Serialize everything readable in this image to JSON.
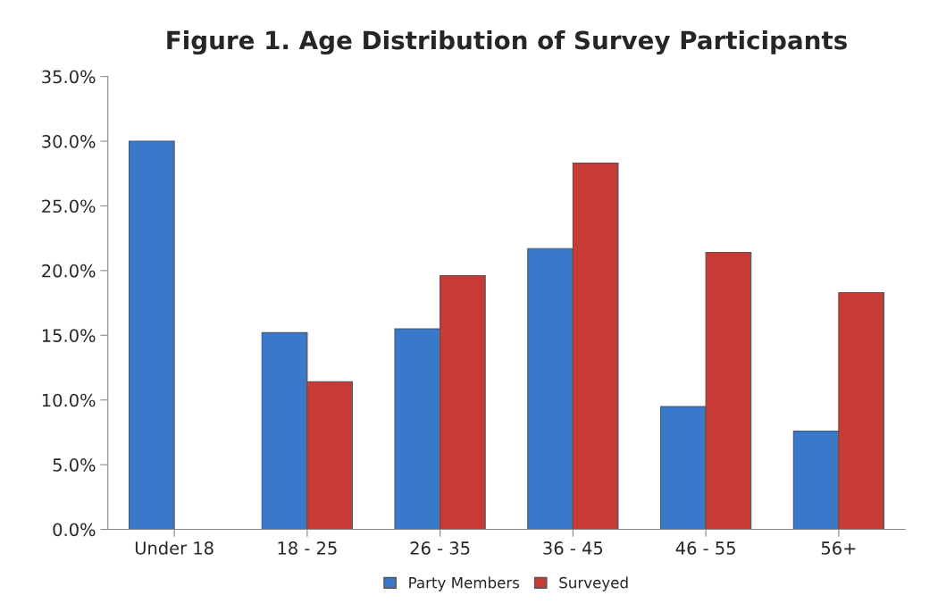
{
  "chart_data": {
    "type": "bar",
    "title": "Figure 1. Age Distribution of Survey Participants",
    "categories": [
      "Under 18",
      "18 - 25",
      "26 - 35",
      "36 - 45",
      "46 - 55",
      "56+"
    ],
    "series": [
      {
        "name": "Party Members",
        "color": "#3a78c9",
        "values": [
          30.0,
          15.2,
          15.5,
          21.7,
          9.5,
          7.6
        ]
      },
      {
        "name": "Surveyed",
        "color": "#c83a36",
        "values": [
          null,
          11.4,
          19.6,
          28.3,
          21.4,
          18.3
        ]
      }
    ],
    "ylim": [
      0,
      35
    ],
    "yticks": [
      {
        "value": 0,
        "label": "0.0%"
      },
      {
        "value": 5,
        "label": "5.0%"
      },
      {
        "value": 10,
        "label": "10.0%"
      },
      {
        "value": 15,
        "label": "15.0%"
      },
      {
        "value": 20,
        "label": "20.0%"
      },
      {
        "value": 25,
        "label": "25.0%"
      },
      {
        "value": 30,
        "label": "30.0%"
      },
      {
        "value": 35,
        "label": "35.0%"
      }
    ],
    "grid": false,
    "legend": "bottom"
  }
}
